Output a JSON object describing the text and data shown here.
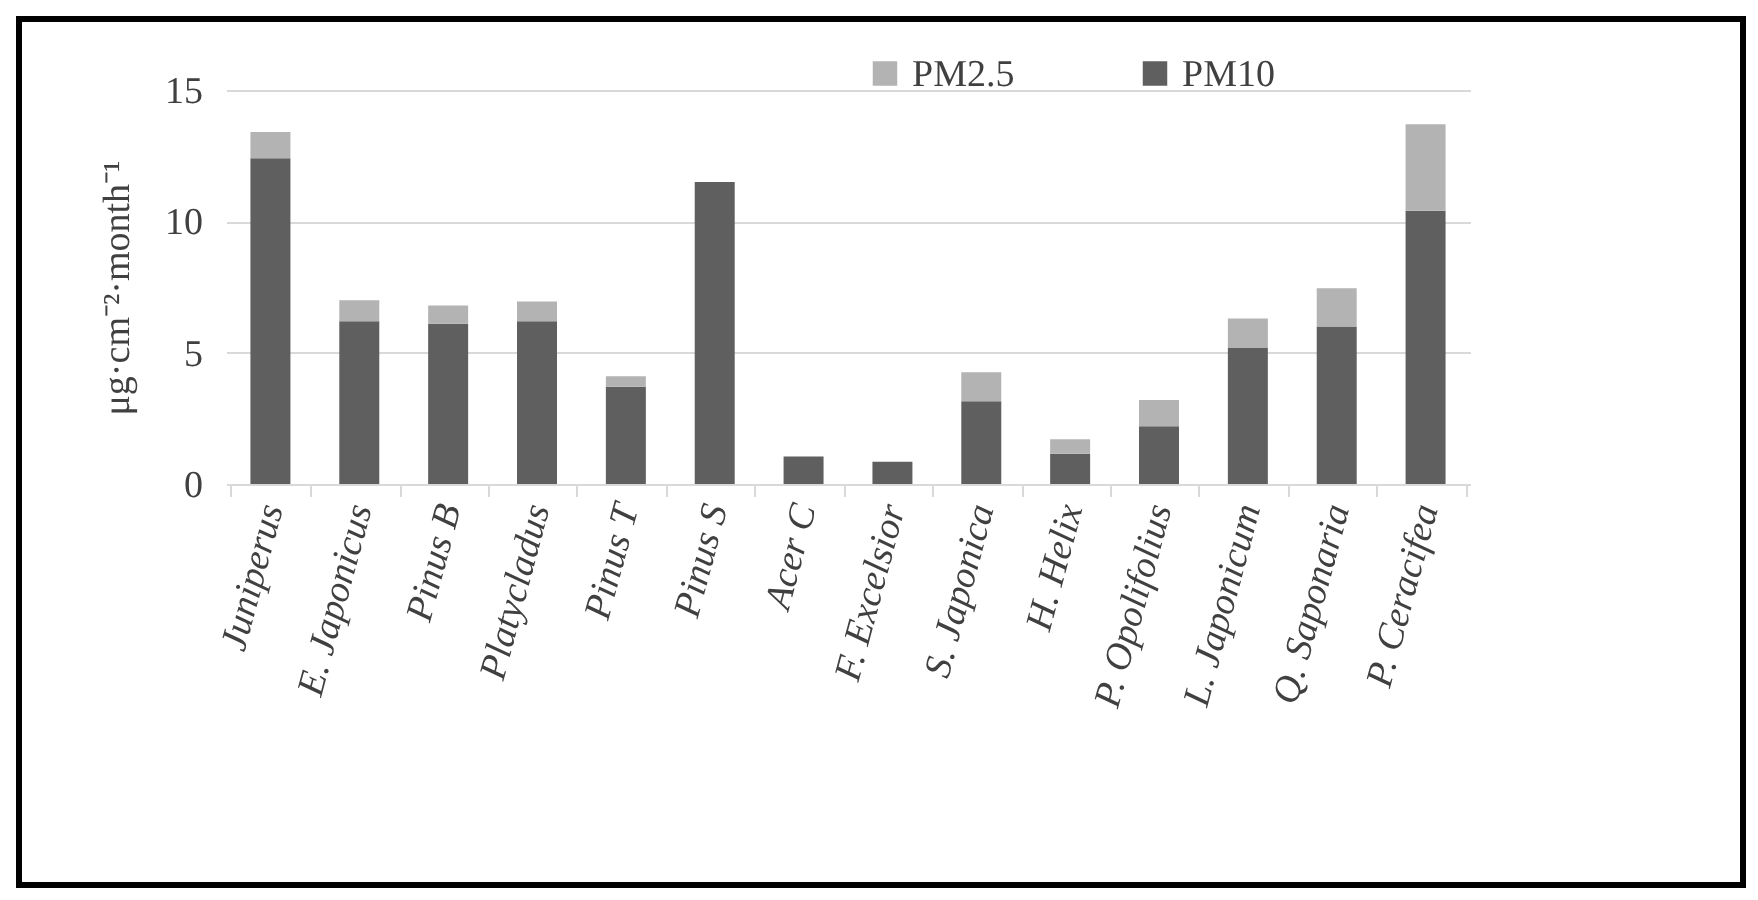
{
  "chart_data": {
    "type": "bar",
    "stacked": true,
    "ylabel": "μg·cm⁻²·month⁻¹",
    "categories": [
      "Juniperus",
      "E. Japonicus",
      "Pinus B",
      "Platycladus",
      "Pinus T",
      "Pinus S",
      "Acer C",
      "F. Excelsior",
      "S. Japonica",
      "H. Helix",
      "P. Opolifolius",
      "L. Japonicum",
      "Q. Saponaria",
      "P. Ceracifea"
    ],
    "series": [
      {
        "name": "PM10",
        "color": "#5f5f5f",
        "values": [
          12.4,
          6.2,
          6.1,
          6.2,
          3.7,
          11.5,
          1.05,
          0.85,
          3.15,
          1.15,
          2.2,
          5.2,
          6.0,
          10.4
        ]
      },
      {
        "name": "PM2.5",
        "color": "#b3b3b3",
        "values": [
          1.0,
          0.8,
          0.7,
          0.75,
          0.4,
          0,
          0,
          0,
          1.1,
          0.55,
          1.0,
          1.1,
          1.45,
          3.3
        ]
      }
    ],
    "ylim": [
      0,
      15
    ],
    "yticks": [
      0,
      5,
      10,
      15
    ],
    "grid": "y",
    "legend": "top"
  }
}
